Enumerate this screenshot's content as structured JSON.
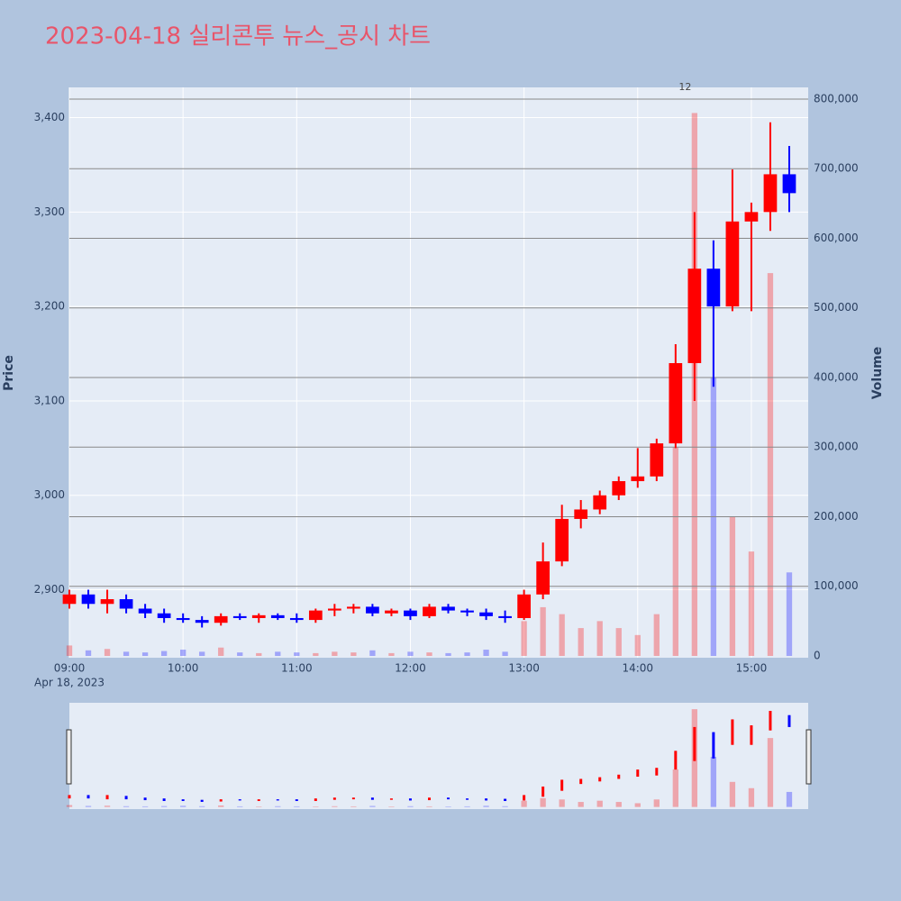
{
  "chart_data": {
    "type": "candlestick",
    "title": "2023-04-18 실리콘투 뉴스_공시 차트",
    "y_label": "Price",
    "y2_label": "Volume",
    "date_label": "Apr 18, 2023",
    "up_color": "#ff0000",
    "down_color": "#0000ff",
    "x": [
      "09:00",
      "09:10",
      "09:20",
      "09:30",
      "09:40",
      "09:50",
      "10:00",
      "10:10",
      "10:20",
      "10:30",
      "10:40",
      "10:50",
      "11:00",
      "11:10",
      "11:20",
      "11:30",
      "11:40",
      "11:50",
      "12:00",
      "12:10",
      "12:20",
      "12:30",
      "12:40",
      "12:50",
      "13:00",
      "13:10",
      "13:20",
      "13:30",
      "13:40",
      "13:50",
      "14:00",
      "14:10",
      "14:20",
      "14:30",
      "14:40",
      "14:50",
      "15:00",
      "15:10",
      "15:20"
    ],
    "open": [
      2885,
      2895,
      2885,
      2890,
      2880,
      2875,
      2870,
      2868,
      2865,
      2872,
      2870,
      2873,
      2870,
      2868,
      2878,
      2880,
      2882,
      2875,
      2878,
      2872,
      2882,
      2878,
      2876,
      2872,
      2870,
      2895,
      2930,
      2975,
      2985,
      3000,
      3015,
      3020,
      3055,
      3140,
      3240,
      3200,
      3290,
      3300,
      3340
    ],
    "high": [
      2900,
      2900,
      2900,
      2895,
      2885,
      2880,
      2875,
      2872,
      2875,
      2875,
      2875,
      2875,
      2875,
      2880,
      2885,
      2885,
      2885,
      2880,
      2880,
      2885,
      2885,
      2880,
      2880,
      2878,
      2900,
      2950,
      2990,
      2995,
      3005,
      3020,
      3050,
      3060,
      3160,
      3300,
      3270,
      3345,
      3310,
      3395,
      3370
    ],
    "low": [
      2880,
      2880,
      2875,
      2875,
      2870,
      2865,
      2865,
      2860,
      2862,
      2868,
      2865,
      2868,
      2865,
      2865,
      2872,
      2875,
      2872,
      2872,
      2868,
      2870,
      2875,
      2872,
      2868,
      2865,
      2868,
      2890,
      2925,
      2965,
      2980,
      2995,
      3008,
      3015,
      3050,
      3100,
      3115,
      3195,
      3195,
      3280,
      3300
    ],
    "close": [
      2895,
      2885,
      2890,
      2880,
      2875,
      2870,
      2868,
      2865,
      2872,
      2870,
      2873,
      2870,
      2868,
      2878,
      2880,
      2882,
      2875,
      2878,
      2872,
      2882,
      2878,
      2876,
      2872,
      2870,
      2895,
      2930,
      2975,
      2985,
      3000,
      3015,
      3020,
      3055,
      3140,
      3240,
      3200,
      3290,
      3300,
      3340,
      3320
    ],
    "volume": [
      15000,
      8000,
      10000,
      6000,
      5000,
      7000,
      9000,
      6000,
      12000,
      5000,
      4000,
      6000,
      5000,
      4000,
      6000,
      5000,
      8000,
      4000,
      6000,
      5000,
      4000,
      5000,
      9000,
      6000,
      50000,
      70000,
      60000,
      40000,
      50000,
      40000,
      30000,
      60000,
      300000,
      780000,
      400000,
      200000,
      150000,
      550000,
      120000
    ],
    "xlim": [
      "09:00",
      "15:30"
    ],
    "xticks": [
      "09:00",
      "10:00",
      "11:00",
      "12:00",
      "13:00",
      "14:00",
      "15:00"
    ],
    "ylim": [
      2828,
      3432
    ],
    "yticks": [
      {
        "value": 2900,
        "label": "2,900"
      },
      {
        "value": 3000,
        "label": "3,000"
      },
      {
        "value": 3100,
        "label": "3,100"
      },
      {
        "value": 3200,
        "label": "3,200"
      },
      {
        "value": 3300,
        "label": "3,300"
      },
      {
        "value": 3400,
        "label": "3,400"
      }
    ],
    "y2lim": [
      -2600,
      816800
    ],
    "y2ticks": [
      0,
      {
        "value": 100000,
        "label": "100,000"
      },
      {
        "value": 200000,
        "label": "200,000"
      },
      {
        "value": 300000,
        "label": "300,000"
      },
      {
        "value": 400000,
        "label": "400,000"
      },
      {
        "value": 500000,
        "label": "500,000"
      },
      {
        "value": 600000,
        "label": "600,000"
      },
      {
        "value": 700000,
        "label": "700,000"
      },
      {
        "value": 800000,
        "label": "800,000"
      }
    ],
    "annotations": [
      {
        "text": "12",
        "x": "14:25"
      }
    ],
    "grid": true
  }
}
